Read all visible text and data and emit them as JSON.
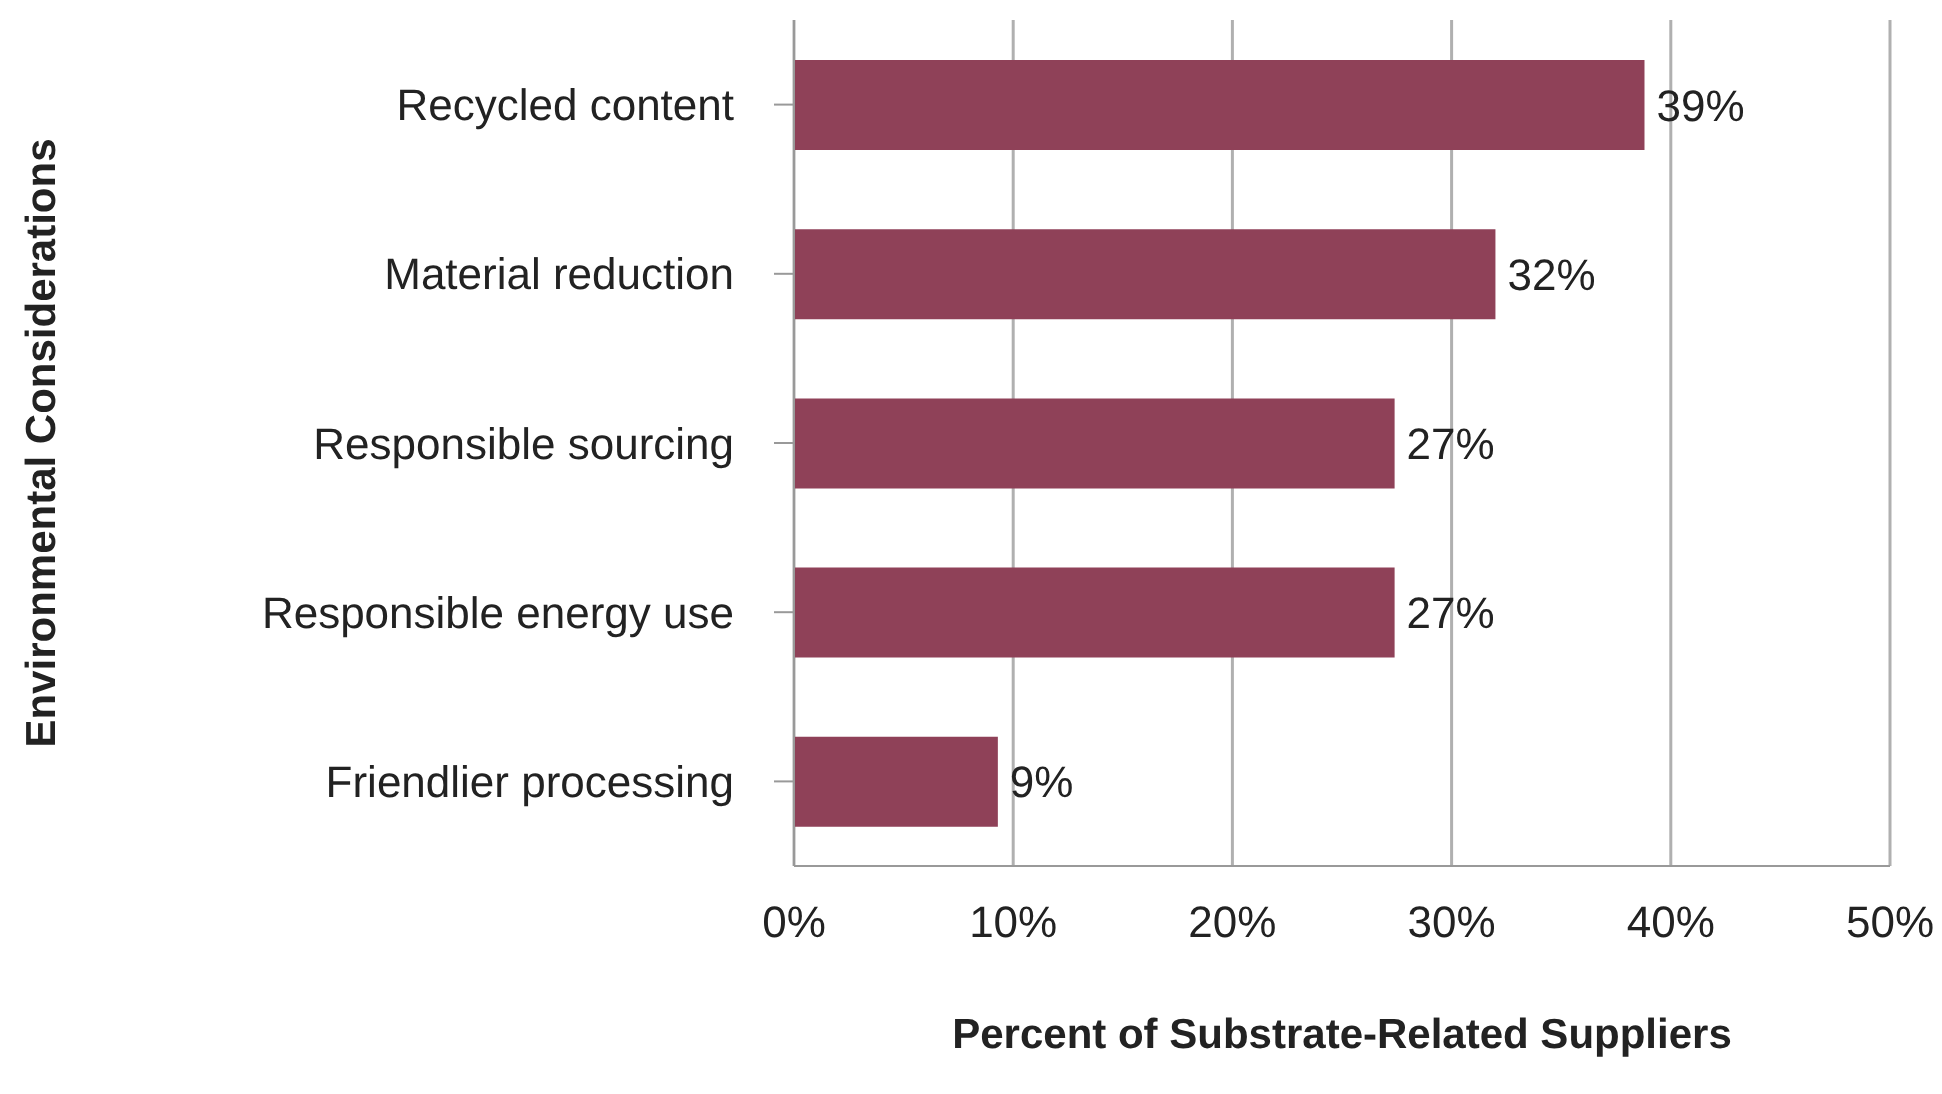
{
  "chart_data": {
    "type": "bar",
    "orientation": "horizontal",
    "xlabel": "Percent of Substrate-Related Suppliers",
    "ylabel": "Environmental Considerations",
    "categories": [
      "Recycled content",
      "Material reduction",
      "Responsible sourcing",
      "Responsible energy use",
      "Friendlier processing"
    ],
    "values": [
      38.8,
      32,
      27.4,
      27.4,
      9.3
    ],
    "value_labels": [
      "39%",
      "32%",
      "27%",
      "27%",
      "9%"
    ],
    "color": "#8f4158",
    "xlim": [
      0,
      50
    ],
    "xticks": [
      {
        "value": 0,
        "label": "0%"
      },
      {
        "value": 10,
        "label": "10%"
      },
      {
        "value": 20,
        "label": "20%"
      },
      {
        "value": 30,
        "label": "30%"
      },
      {
        "value": 40,
        "label": "40%"
      },
      {
        "value": 50,
        "label": "50%"
      }
    ],
    "grid": "x",
    "legend": false
  }
}
